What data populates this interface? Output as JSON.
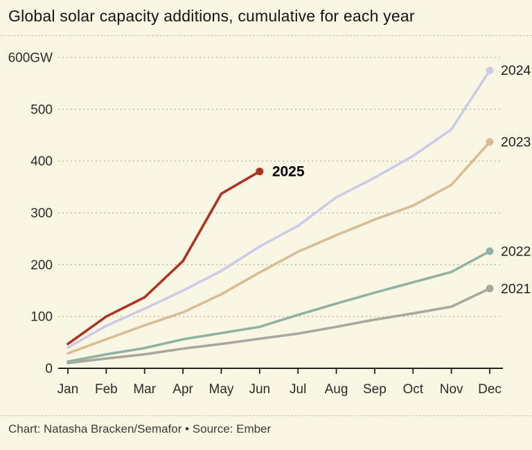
{
  "title": "Global solar capacity additions, cumulative for each year",
  "footer": "Chart: Natasha Bracken/Semafor • Source: Ember",
  "colors": {
    "background": "#f9f6e3",
    "grid": "#b8b5a2",
    "axis": "#21211d",
    "tick_text": "#2a2a26",
    "label_text": "#1e1e1c",
    "highlight_label": "#000000"
  },
  "chart_data": {
    "type": "line",
    "title": "Global solar capacity additions, cumulative for each year",
    "unit": "GW",
    "xlabel": "",
    "ylabel": "GW",
    "categories": [
      "Jan",
      "Feb",
      "Mar",
      "Apr",
      "May",
      "Jun",
      "Jul",
      "Aug",
      "Sep",
      "Oct",
      "Nov",
      "Dec"
    ],
    "y_ticks": [
      0,
      100,
      200,
      300,
      400,
      500,
      600
    ],
    "y_tick_labels": [
      "0",
      "100",
      "200",
      "300",
      "400",
      "500",
      "600GW"
    ],
    "ylim": [
      0,
      640
    ],
    "grid": "horizontal dotted",
    "legend_position": "end-of-line labels",
    "series": [
      {
        "name": "2025",
        "color": "#b1301f",
        "highlight": true,
        "values": [
          47,
          100,
          137,
          207,
          337,
          380
        ]
      },
      {
        "name": "2024",
        "color": "#c9cbe8",
        "highlight": false,
        "values": [
          40,
          82,
          115,
          150,
          188,
          235,
          275,
          330,
          368,
          410,
          461,
          575
        ]
      },
      {
        "name": "2023",
        "color": "#d8bd92",
        "highlight": false,
        "values": [
          29,
          56,
          83,
          108,
          143,
          185,
          225,
          257,
          287,
          314,
          354,
          437
        ]
      },
      {
        "name": "2022",
        "color": "#8fb3a0",
        "highlight": false,
        "values": [
          13,
          27,
          39,
          56,
          68,
          80,
          103,
          125,
          146,
          166,
          186,
          226
        ]
      },
      {
        "name": "2021",
        "color": "#a8a7a0",
        "highlight": false,
        "values": [
          10,
          19,
          27,
          38,
          47,
          57,
          67,
          80,
          94,
          106,
          119,
          154
        ]
      }
    ]
  }
}
